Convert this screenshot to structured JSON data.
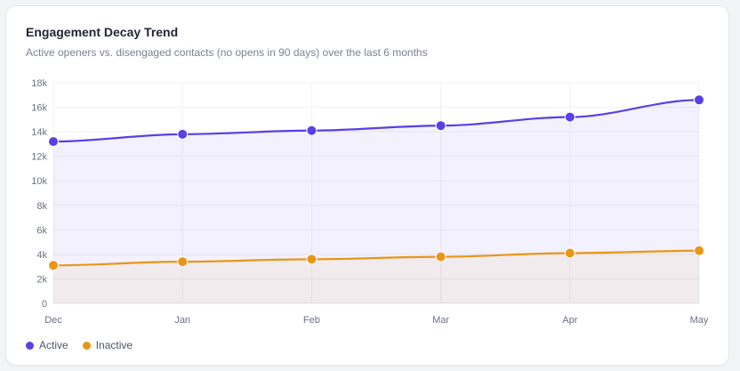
{
  "card": {
    "title": "Engagement Decay Trend",
    "subtitle": "Active openers vs. disengaged contacts (no opens in 90 days) over the last 6 months"
  },
  "chart_data": {
    "type": "area",
    "title": "Engagement Decay Trend",
    "subtitle": "Active openers vs. disengaged contacts (no opens in 90 days) over the last 6 months",
    "categories": [
      "Dec",
      "Jan",
      "Feb",
      "Mar",
      "Apr",
      "May"
    ],
    "ylim": [
      0,
      18000
    ],
    "yticks": [
      0,
      2000,
      4000,
      6000,
      8000,
      10000,
      12000,
      14000,
      16000,
      18000
    ],
    "ytick_labels": [
      "0",
      "2k",
      "4k",
      "6k",
      "8k",
      "10k",
      "12k",
      "14k",
      "16k",
      "18k"
    ],
    "grid": true,
    "legend_position": "bottom-left",
    "series": [
      {
        "name": "Active",
        "color": "#5b3ee4",
        "values": [
          13200,
          13800,
          14100,
          14500,
          15200,
          16600
        ]
      },
      {
        "name": "Inactive",
        "color": "#e8961a",
        "values": [
          3100,
          3400,
          3600,
          3800,
          4100,
          4300
        ]
      }
    ]
  }
}
